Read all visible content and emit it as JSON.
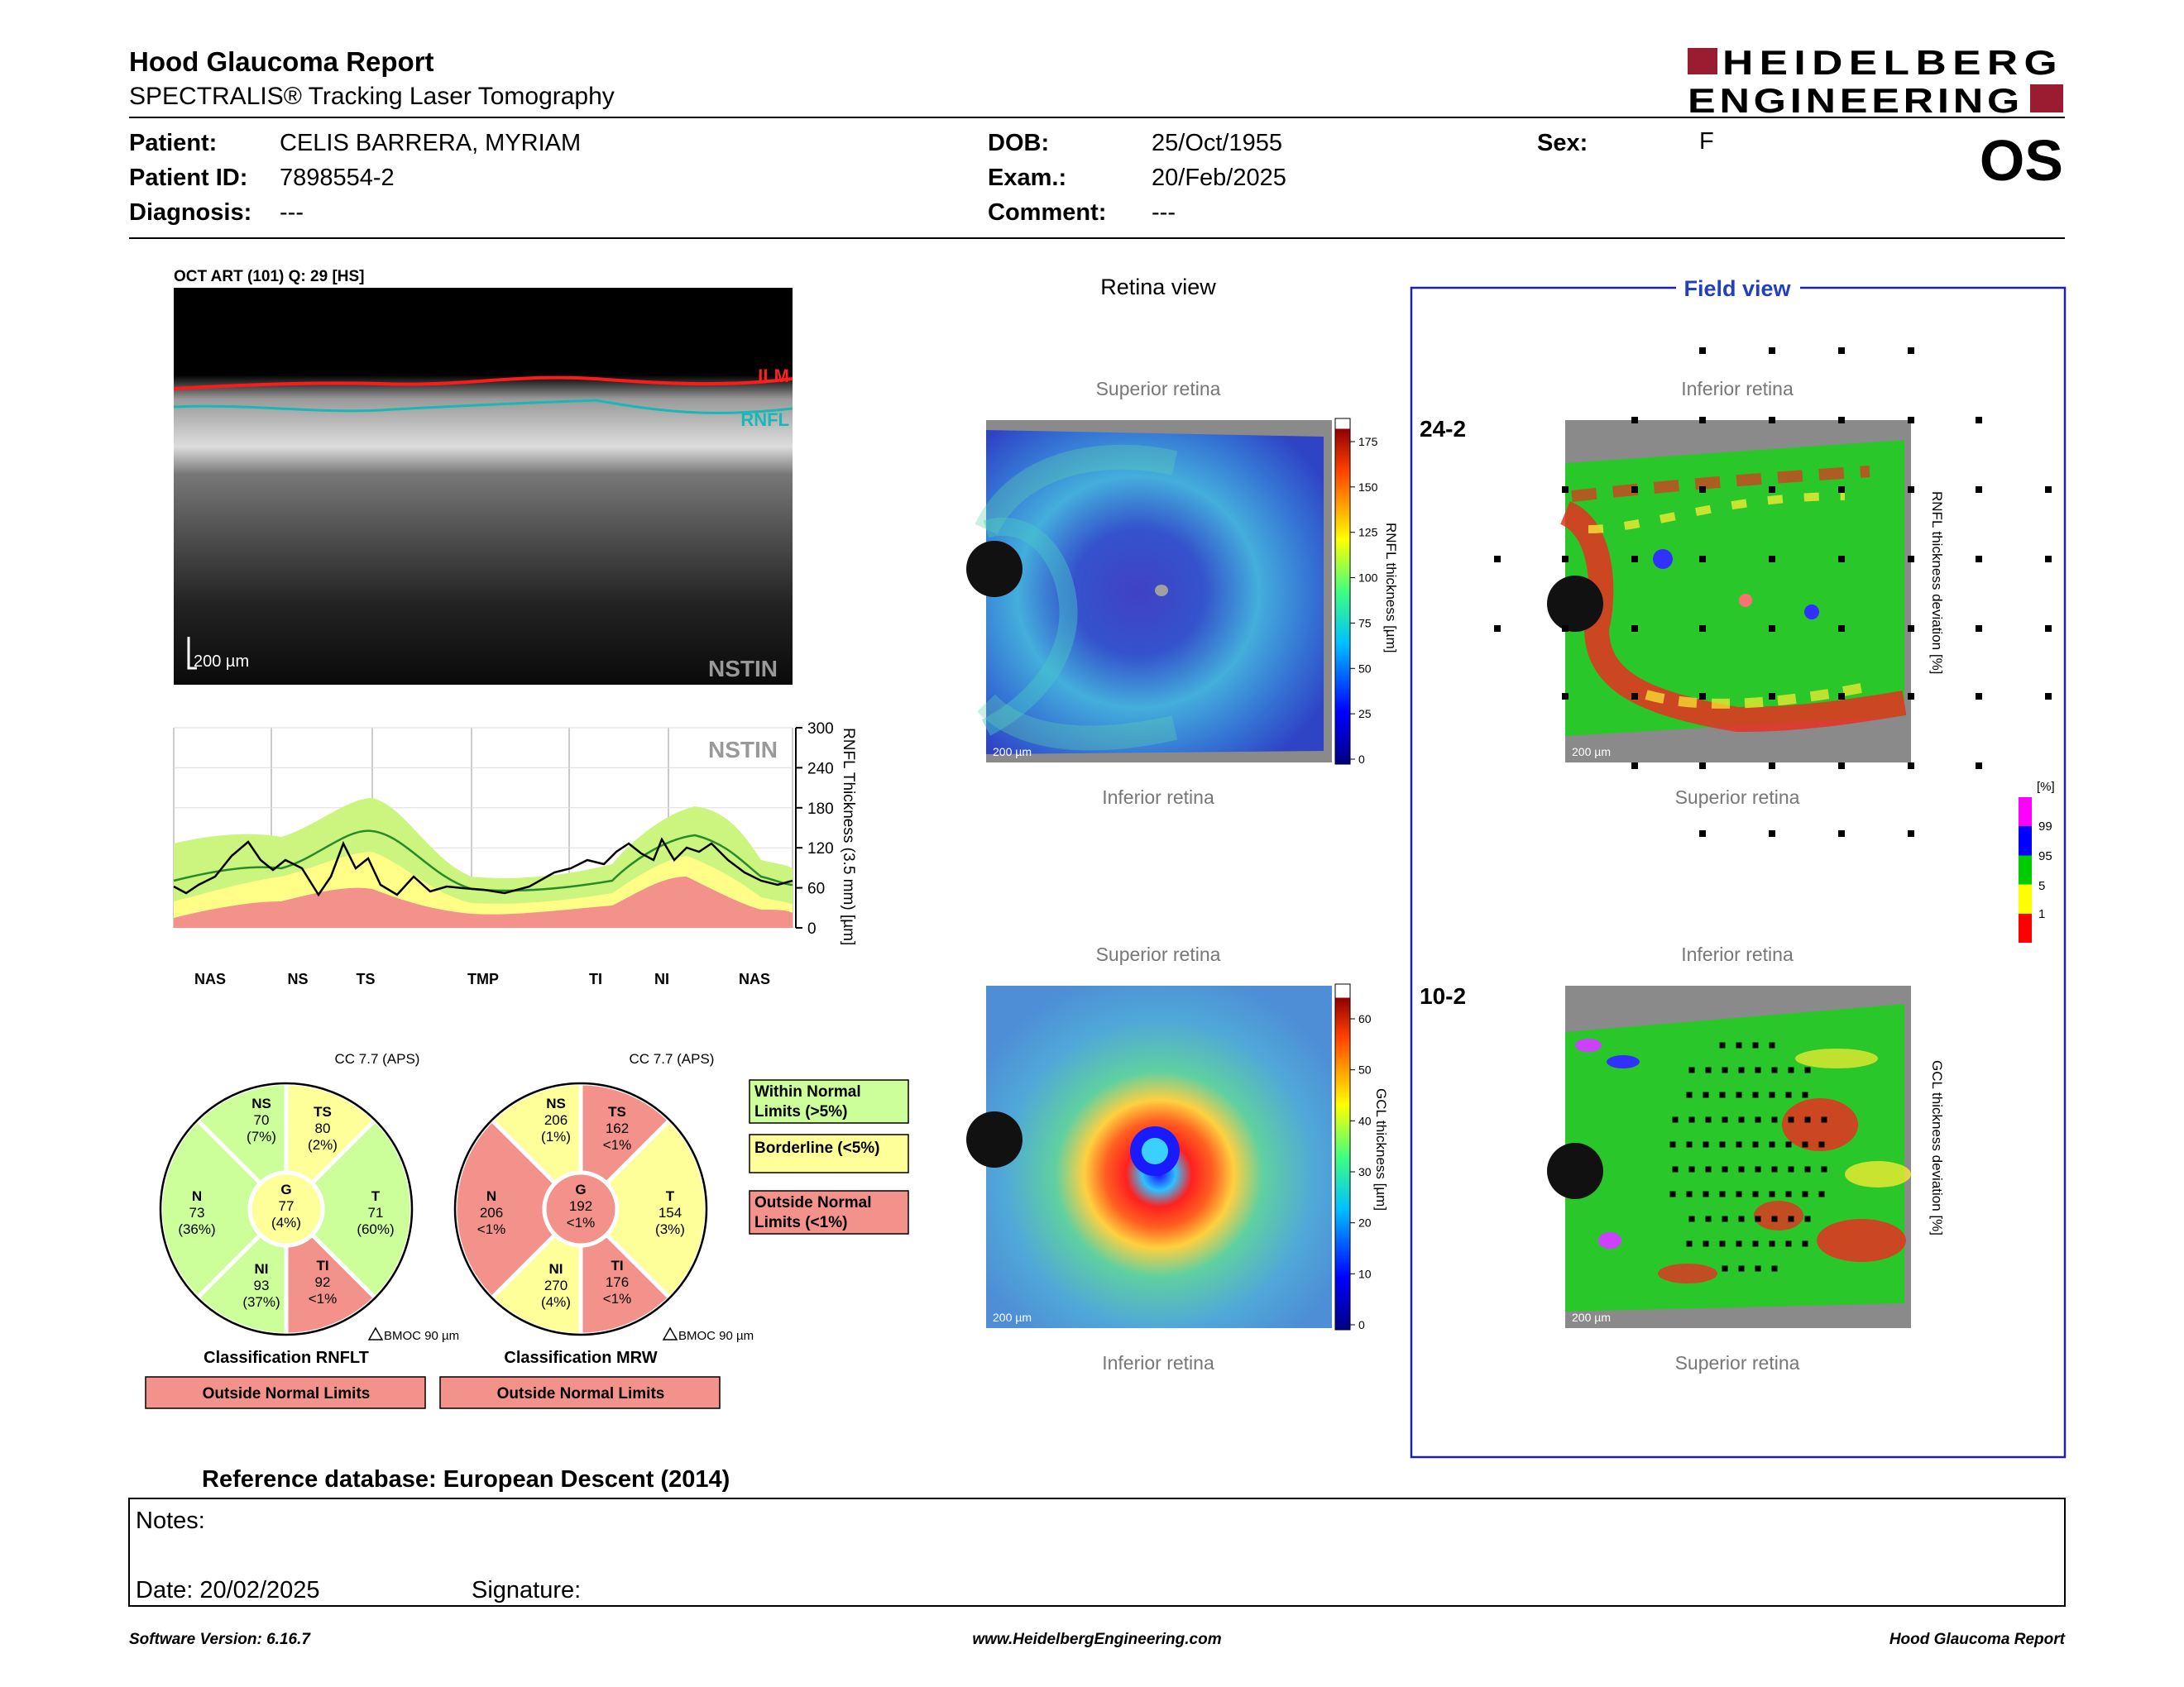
{
  "header": {
    "title": "Hood Glaucoma Report",
    "subtitle": "SPECTRALIS® Tracking Laser Tomography",
    "logo_line1": "HEIDELBERG",
    "logo_line2": "ENGINEERING",
    "eye": "OS"
  },
  "patient": {
    "label_patient": "Patient:",
    "name": "CELIS BARRERA, MYRIAM",
    "label_id": "Patient ID:",
    "id": "7898554-2",
    "label_diagnosis": "Diagnosis:",
    "diagnosis": "---",
    "label_dob": "DOB:",
    "dob": "25/Oct/1955",
    "label_exam": "Exam.:",
    "exam": "20/Feb/2025",
    "label_comment": "Comment:",
    "comment": "---",
    "label_sex": "Sex:",
    "sex": "F"
  },
  "oct": {
    "title": "OCT ART (101) Q: 29 [HS]",
    "ilm": "ILM",
    "rnfl": "RNFL",
    "scale": "200 µm",
    "mode": "NSTIN"
  },
  "rnfl_chart": {
    "mode": "NSTIN",
    "ylabel": "RNFL Thickness (3.5 mm) [µm]",
    "yticks": [
      "300",
      "240",
      "180",
      "120",
      "60",
      "0"
    ],
    "sectors": [
      "NAS",
      "NS",
      "TS",
      "TMP",
      "TI",
      "NI",
      "NAS"
    ]
  },
  "chart_data": {
    "type": "line",
    "title": "",
    "xlabel": "",
    "ylabel": "RNFL Thickness (3.5 mm) [µm]",
    "ylim": [
      0,
      300
    ],
    "categories": [
      "NAS",
      "NS",
      "TS",
      "TMP",
      "TI",
      "NI",
      "NAS"
    ],
    "series": [
      {
        "values": [
          58,
          100,
          96,
          52,
          95,
          80,
          57
        ]
      }
    ]
  },
  "classification": {
    "rnflt": {
      "cc": "CC 7.7 (APS)",
      "ns": {
        "label": "NS",
        "value": "70",
        "pct": "(7%)"
      },
      "ts": {
        "label": "TS",
        "value": "80",
        "pct": "(2%)"
      },
      "n": {
        "label": "N",
        "value": "73",
        "pct": "(36%)"
      },
      "g": {
        "label": "G",
        "value": "77",
        "pct": "(4%)"
      },
      "t": {
        "label": "T",
        "value": "71",
        "pct": "(60%)"
      },
      "ni": {
        "label": "NI",
        "value": "93",
        "pct": "(37%)"
      },
      "ti": {
        "label": "TI",
        "value": "92",
        "pct": "<1%"
      },
      "bmoc": "BMOC 90 µm",
      "caption": "Classification RNFLT",
      "result": "Outside Normal Limits"
    },
    "mrw": {
      "cc": "CC 7.7 (APS)",
      "ns": {
        "label": "NS",
        "value": "206",
        "pct": "(1%)"
      },
      "ts": {
        "label": "TS",
        "value": "162",
        "pct": "<1%"
      },
      "n": {
        "label": "N",
        "value": "206",
        "pct": "<1%"
      },
      "g": {
        "label": "G",
        "value": "192",
        "pct": "<1%"
      },
      "t": {
        "label": "T",
        "value": "154",
        "pct": "(3%)"
      },
      "ni": {
        "label": "NI",
        "value": "270",
        "pct": "(4%)"
      },
      "ti": {
        "label": "TI",
        "value": "176",
        "pct": "<1%"
      },
      "bmoc": "BMOC 90 µm",
      "caption": "Classification MRW",
      "result": "Outside Normal Limits"
    },
    "legend": {
      "within_1": "Within Normal",
      "within_2": "Limits (>5%)",
      "borderline": "Borderline (<5%)",
      "outside_1": "Outside Normal",
      "outside_2": "Limits (<1%)"
    },
    "colors": {
      "within": "#ccff99",
      "borderline": "#ffff99",
      "outside": "#f3918b"
    }
  },
  "retina_view": {
    "title": "Retina view",
    "superior": "Superior retina",
    "inferior": "Inferior retina",
    "scale": "200 µm",
    "rnfl_scale": {
      "label": "RNFL thickness [µm]",
      "ticks": [
        "175",
        "150",
        "125",
        "100",
        "75",
        "50",
        "25",
        "0"
      ]
    },
    "gcl_scale": {
      "label": "GCL thickness [µm]",
      "ticks": [
        "60",
        "50",
        "40",
        "30",
        "20",
        "10",
        "0"
      ]
    }
  },
  "field_view": {
    "title": "Field view",
    "inferior": "Inferior retina",
    "superior": "Superior retina",
    "grid_24": "24-2",
    "grid_10": "10-2",
    "scale": "200 µm",
    "rnfl_dev": "RNFL thickness deviation [%]",
    "gcl_dev": "GCL thickness deviation [%]",
    "pct_unit": "[%]",
    "pct_ticks": [
      "99",
      "95",
      "5",
      "1"
    ]
  },
  "footer": {
    "reference": "Reference database: European Descent (2014)",
    "notes": "Notes:",
    "date": "Date: 20/02/2025",
    "signature": "Signature:",
    "software": "Software Version: 6.16.7",
    "website": "www.HeidelbergEngineering.com",
    "report_name": "Hood Glaucoma Report"
  }
}
